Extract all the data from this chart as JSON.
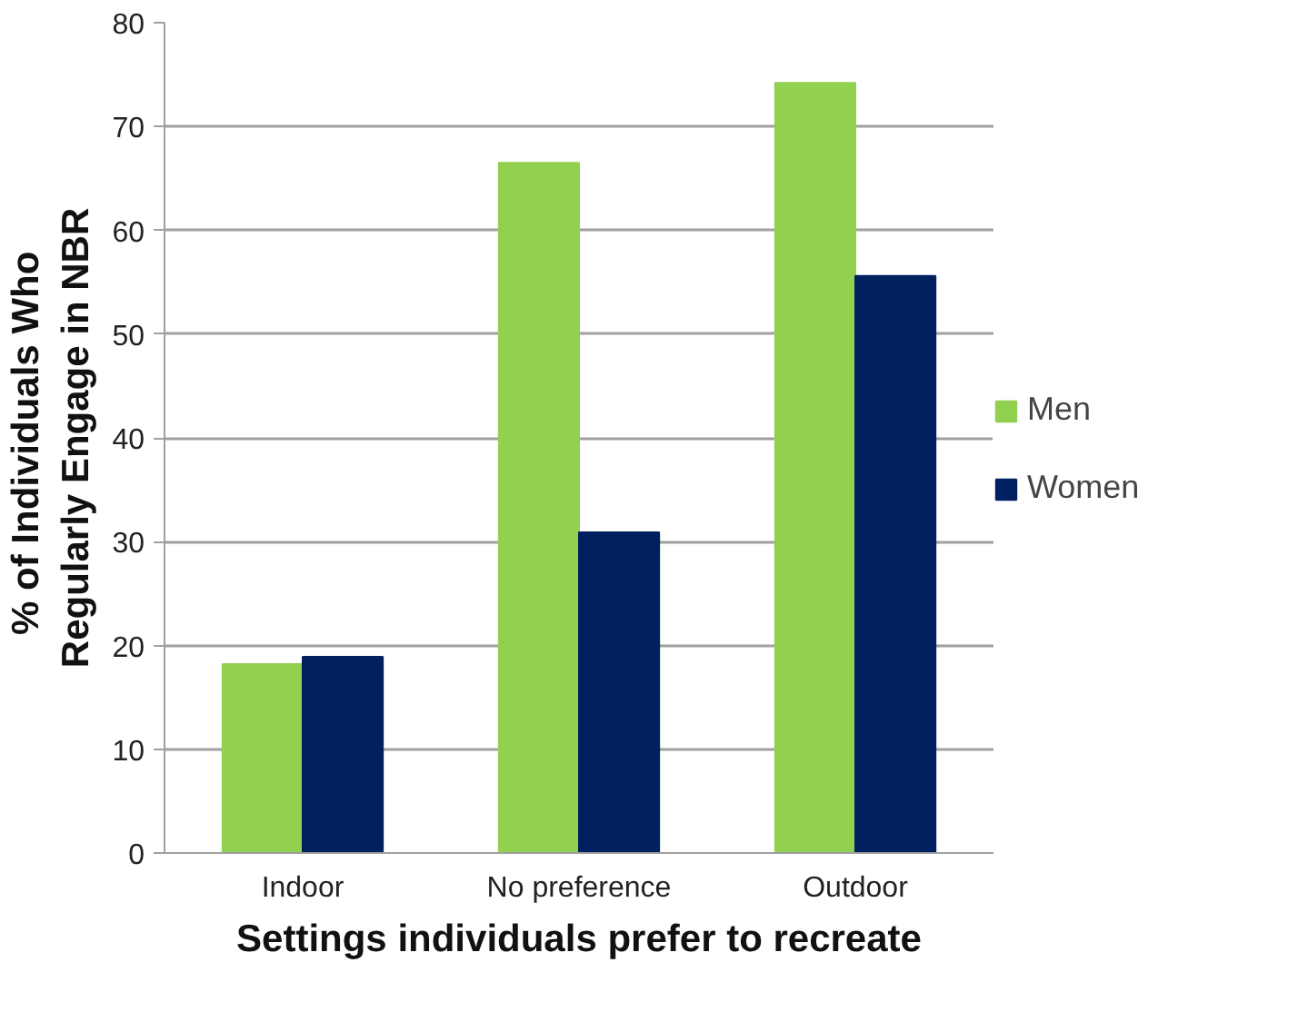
{
  "chart_data": {
    "type": "bar",
    "xlabel": "Settings individuals prefer to recreate",
    "ylabel": "% of Individuals  Who Regularly Engage in NBR",
    "categories": [
      "Indoor",
      "No preference",
      "Outdoor"
    ],
    "series": [
      {
        "name": "Men",
        "color": "#92d050",
        "values": [
          18.2,
          66.5,
          74.2
        ]
      },
      {
        "name": "Women",
        "color": "#002060",
        "values": [
          18.9,
          30.9,
          55.6
        ]
      }
    ],
    "ylim": [
      0,
      80
    ],
    "yticks": [
      0,
      10,
      20,
      30,
      40,
      50,
      60,
      70,
      80
    ],
    "grid": "y",
    "legend": "right"
  }
}
